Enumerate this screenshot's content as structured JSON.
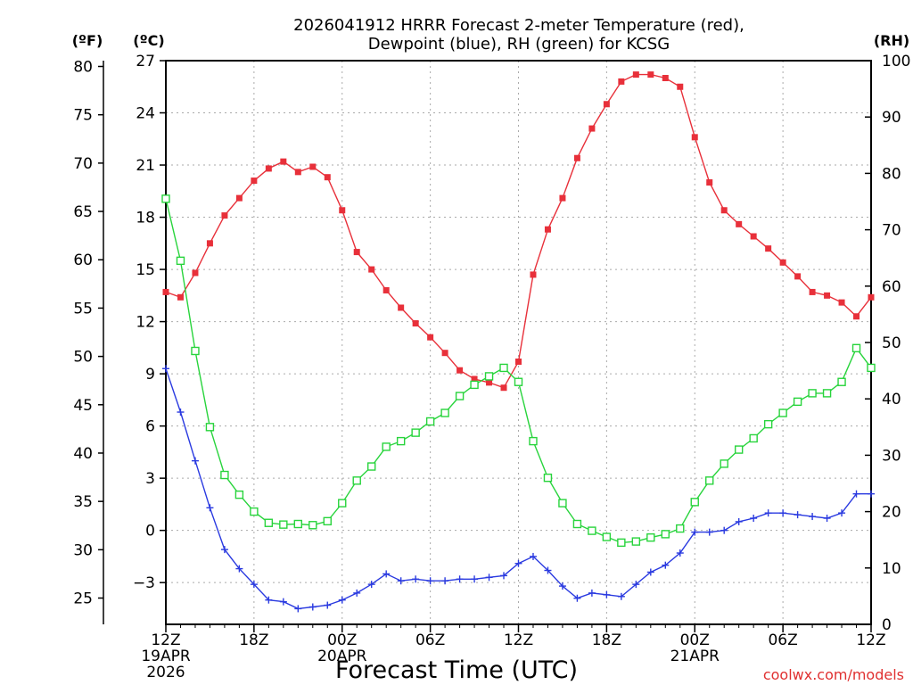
{
  "chart_data": {
    "type": "line",
    "title_line1": "2026041912 HRRR Forecast 2-meter Temperature (red),",
    "title_line2": "Dewpoint (blue), RH (green) for KCSG",
    "xlabel": "Forecast Time (UTC)",
    "credit": "coolwx.com/models",
    "units": {
      "fahrenheit": "(ºF)",
      "celsius": "(ºC)",
      "rh": "(RH)"
    },
    "x_hours_range": [
      0,
      48
    ],
    "celsius_range": [
      -5.4,
      27
    ],
    "rh_range": [
      0,
      100
    ],
    "celsius_ticks": [
      27,
      24,
      21,
      18,
      15,
      12,
      9,
      6,
      3,
      0,
      -3
    ],
    "celsius_tick_labels": [
      "27",
      "24",
      "21",
      "18",
      "15",
      "12",
      "9",
      "6",
      "3",
      "0",
      "−3"
    ],
    "fahrenheit_ticks": [
      80,
      75,
      70,
      65,
      60,
      55,
      50,
      45,
      40,
      35,
      30,
      25
    ],
    "rh_ticks": [
      100,
      90,
      80,
      70,
      60,
      50,
      40,
      30,
      20,
      10,
      0
    ],
    "x_ticks": [
      {
        "hour": 0,
        "lines": [
          "12Z",
          "19APR",
          "2026"
        ]
      },
      {
        "hour": 6,
        "lines": [
          "18Z"
        ]
      },
      {
        "hour": 12,
        "lines": [
          "00Z",
          "20APR"
        ]
      },
      {
        "hour": 18,
        "lines": [
          "06Z"
        ]
      },
      {
        "hour": 24,
        "lines": [
          "12Z"
        ]
      },
      {
        "hour": 30,
        "lines": [
          "18Z"
        ]
      },
      {
        "hour": 36,
        "lines": [
          "00Z",
          "21APR"
        ]
      },
      {
        "hour": 42,
        "lines": [
          "06Z"
        ]
      },
      {
        "hour": 48,
        "lines": [
          "12Z"
        ]
      }
    ],
    "series": [
      {
        "name": "2-meter Temperature",
        "axis": "celsius",
        "color": "#e8303a",
        "marker": "filled-square",
        "values": [
          13.7,
          13.4,
          14.8,
          16.5,
          18.1,
          19.1,
          20.1,
          20.8,
          21.2,
          20.6,
          20.9,
          20.3,
          18.4,
          16.0,
          15.0,
          13.8,
          12.8,
          11.9,
          11.1,
          10.2,
          9.2,
          8.7,
          8.5,
          8.2,
          9.7,
          14.7,
          17.3,
          19.1,
          21.4,
          23.1,
          24.5,
          25.8,
          26.2,
          26.2,
          26.0,
          25.5,
          22.6,
          20.0,
          18.4,
          17.6,
          16.9,
          16.2,
          15.4,
          14.6,
          13.7,
          13.5,
          13.1,
          12.3,
          13.4
        ]
      },
      {
        "name": "Dewpoint",
        "axis": "celsius",
        "color": "#2a3ae0",
        "marker": "plus",
        "values": [
          9.3,
          6.8,
          4.0,
          1.3,
          -1.1,
          -2.2,
          -3.1,
          -4.0,
          -4.1,
          -4.5,
          -4.4,
          -4.3,
          -4.0,
          -3.6,
          -3.1,
          -2.5,
          -2.9,
          -2.8,
          -2.9,
          -2.9,
          -2.8,
          -2.8,
          -2.7,
          -2.6,
          -1.9,
          -1.5,
          -2.3,
          -3.2,
          -3.9,
          -3.6,
          -3.7,
          -3.8,
          -3.1,
          -2.4,
          -2.0,
          -1.3,
          -0.1,
          -0.1,
          0.0,
          0.5,
          0.7,
          1.0,
          1.0,
          0.9,
          0.8,
          0.7,
          1.0,
          2.1,
          2.1
        ]
      },
      {
        "name": "RH",
        "axis": "rh",
        "color": "#28d43c",
        "marker": "open-square",
        "values": [
          75.5,
          64.5,
          48.5,
          35.0,
          26.5,
          23.0,
          20.0,
          18.0,
          17.7,
          17.8,
          17.6,
          18.3,
          21.5,
          25.5,
          28.0,
          31.5,
          32.5,
          34.0,
          36.0,
          37.5,
          40.5,
          42.5,
          44.0,
          45.5,
          43.0,
          32.5,
          26.0,
          21.5,
          17.8,
          16.6,
          15.5,
          14.5,
          14.7,
          15.4,
          16.0,
          17.0,
          21.7,
          25.5,
          28.5,
          31.0,
          33.0,
          35.5,
          37.5,
          39.5,
          41.0,
          41.0,
          43.0,
          49.0,
          45.5
        ]
      }
    ]
  }
}
